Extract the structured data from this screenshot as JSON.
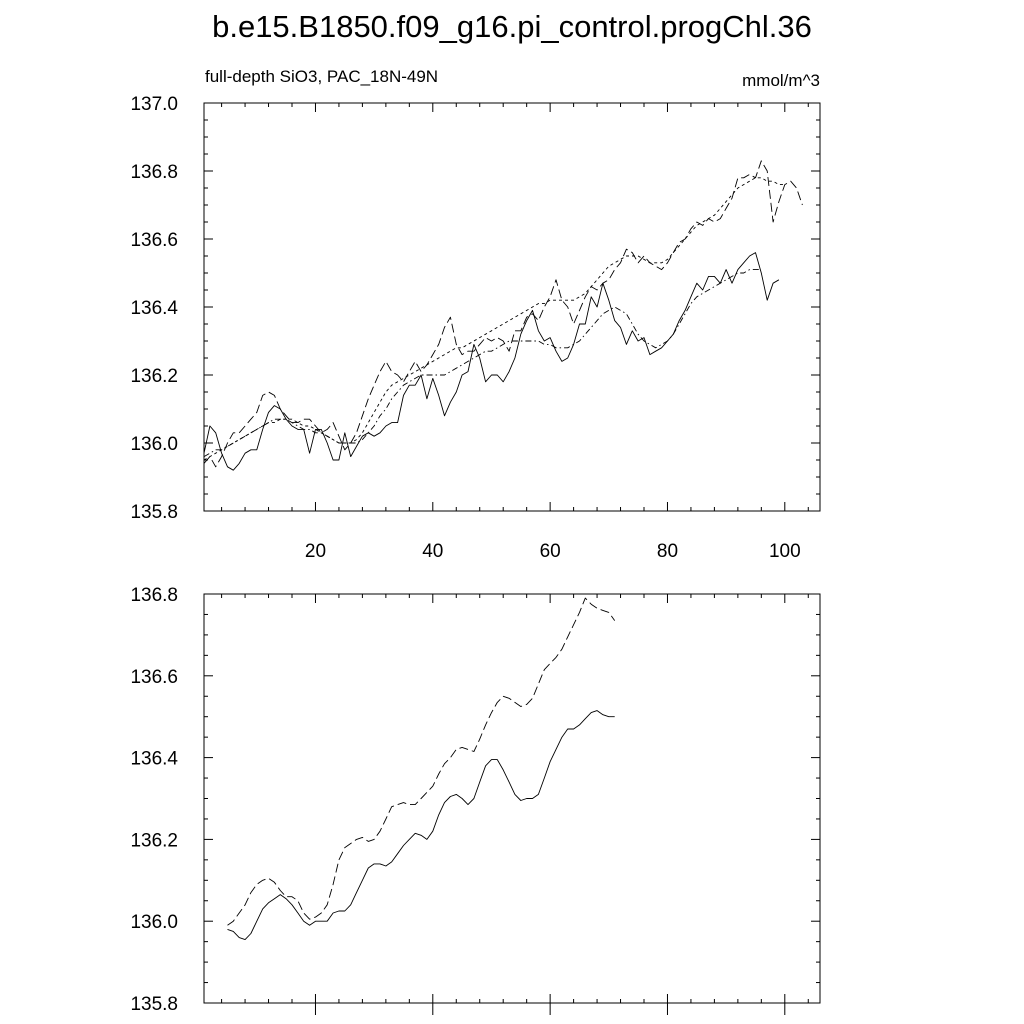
{
  "title": "b.e15.B1850.f09_g16.pi_control.progChl.36",
  "chart_data": [
    {
      "type": "line",
      "panel": "top",
      "subtitle_left": "full-depth SiO3, PAC_18N-49N",
      "subtitle_right": "mmol/m^3",
      "xlim": [
        1,
        106
      ],
      "ylim": [
        135.8,
        137.0
      ],
      "x_ticks": [
        20,
        40,
        60,
        80,
        100
      ],
      "x_tick_labels": [
        "20",
        "40",
        "60",
        "80",
        "100"
      ],
      "y_ticks": [
        135.8,
        136.0,
        136.2,
        136.4,
        136.6,
        136.8,
        137.0
      ],
      "y_tick_labels": [
        "135.8",
        "136.0",
        "136.2",
        "136.4",
        "136.6",
        "136.8",
        "137.0"
      ],
      "series": [
        {
          "style": "solid",
          "x_start": 1,
          "values": [
            135.97,
            136.05,
            136.03,
            135.97,
            135.93,
            135.92,
            135.94,
            135.97,
            135.98,
            135.98,
            136.04,
            136.09,
            136.11,
            136.1,
            136.07,
            136.05,
            136.04,
            136.04,
            135.97,
            136.04,
            136.04,
            136.0,
            135.95,
            135.95,
            136.03,
            135.96,
            135.99,
            136.02,
            136.03,
            136.02,
            136.03,
            136.05,
            136.06,
            136.06,
            136.14,
            136.17,
            136.17,
            136.2,
            136.13,
            136.19,
            136.14,
            136.08,
            136.12,
            136.15,
            136.2,
            136.21,
            136.29,
            136.25,
            136.18,
            136.2,
            136.2,
            136.18,
            136.21,
            136.25,
            136.32,
            136.36,
            136.39,
            136.33,
            136.3,
            136.31,
            136.27,
            136.24,
            136.25,
            136.29,
            136.35,
            136.35,
            136.43,
            136.4,
            136.47,
            136.42,
            136.36,
            136.34,
            136.29,
            136.33,
            136.3,
            136.31,
            136.26,
            136.27,
            136.28,
            136.3,
            136.32,
            136.36,
            136.39,
            136.43,
            136.47,
            136.45,
            136.49,
            136.49,
            136.47,
            136.51,
            136.47,
            136.51,
            136.53,
            136.55,
            136.56,
            136.5,
            136.42,
            136.47,
            136.48
          ]
        },
        {
          "style": "dashed",
          "x_start": 1,
          "values": [
            135.94,
            135.96,
            135.93,
            135.96,
            136.0,
            136.03,
            136.03,
            136.05,
            136.07,
            136.09,
            136.14,
            136.15,
            136.14,
            136.1,
            136.08,
            136.06,
            136.06,
            136.07,
            136.07,
            136.05,
            136.03,
            136.04,
            136.06,
            136.02,
            135.98,
            136.0,
            136.03,
            136.08,
            136.13,
            136.17,
            136.21,
            136.24,
            136.21,
            136.2,
            136.18,
            136.21,
            136.24,
            136.21,
            136.23,
            136.26,
            136.29,
            136.34,
            136.37,
            136.29,
            136.26,
            136.27,
            136.27,
            136.29,
            136.31,
            136.3,
            136.31,
            136.3,
            136.27,
            136.33,
            136.33,
            136.37,
            136.38,
            136.36,
            136.4,
            136.43,
            136.48,
            136.42,
            136.4,
            136.35,
            136.39,
            136.43,
            136.46,
            136.45,
            136.47,
            136.48,
            136.51,
            136.53,
            136.57,
            136.56,
            136.53,
            136.55,
            136.53,
            136.52,
            136.51,
            136.53,
            136.56,
            136.59,
            136.6,
            136.63,
            136.65,
            136.64,
            136.66,
            136.65,
            136.66,
            136.69,
            136.72,
            136.78,
            136.78,
            136.79,
            136.78,
            136.83,
            136.8,
            136.65,
            136.71,
            136.76,
            136.77,
            136.75,
            136.7
          ]
        },
        {
          "style": "dashdot",
          "x_start": 1,
          "values": [
            135.96,
            135.97,
            135.98,
            135.98,
            135.99,
            136.0,
            136.01,
            136.02,
            136.03,
            136.04,
            136.05,
            136.06,
            136.07,
            136.07,
            136.07,
            136.06,
            136.05,
            136.04,
            136.04,
            136.03,
            136.03,
            136.02,
            136.01,
            136.0,
            136.0,
            136.0,
            136.0,
            136.01,
            136.03,
            136.05,
            136.08,
            136.1,
            136.13,
            136.15,
            136.17,
            136.18,
            136.19,
            136.2,
            136.2,
            136.2,
            136.2,
            136.2,
            136.21,
            136.22,
            136.23,
            136.24,
            136.25,
            136.26,
            136.27,
            136.27,
            136.28,
            136.29,
            136.3,
            136.3,
            136.3,
            136.3,
            136.3,
            136.3,
            136.29,
            136.29,
            136.28,
            136.28,
            136.28,
            136.29,
            136.3,
            136.32,
            136.34,
            136.36,
            136.38,
            136.39,
            136.4,
            136.39,
            136.38,
            136.35,
            136.32,
            136.3,
            136.29,
            136.28,
            136.29,
            136.3,
            136.32,
            136.35,
            136.38,
            136.41,
            136.43,
            136.44,
            136.45,
            136.46,
            136.47,
            136.48,
            136.49,
            136.5,
            136.5,
            136.51,
            136.51,
            136.51
          ]
        },
        {
          "style": "dashed-fine",
          "x_start": 1,
          "values": [
            135.95,
            135.96,
            135.97,
            135.98,
            135.99,
            136.0,
            136.01,
            136.02,
            136.03,
            136.04,
            136.05,
            136.06,
            136.06,
            136.07,
            136.07,
            136.07,
            136.06,
            136.05,
            136.05,
            136.04,
            136.03,
            136.02,
            136.01,
            136.0,
            136.0,
            136.0,
            136.01,
            136.03,
            136.06,
            136.09,
            136.12,
            136.15,
            136.17,
            136.18,
            136.19,
            136.2,
            136.21,
            136.22,
            136.23,
            136.24,
            136.25,
            136.26,
            136.27,
            136.28,
            136.28,
            136.29,
            136.3,
            136.31,
            136.32,
            136.33,
            136.34,
            136.35,
            136.36,
            136.37,
            136.38,
            136.39,
            136.4,
            136.41,
            136.41,
            136.42,
            136.42,
            136.42,
            136.42,
            136.42,
            136.43,
            136.44,
            136.46,
            136.48,
            136.5,
            136.52,
            136.53,
            136.54,
            136.55,
            136.55,
            136.55,
            136.54,
            136.53,
            136.53,
            136.53,
            136.54,
            136.56,
            136.58,
            136.6,
            136.62,
            136.64,
            136.65,
            136.66,
            136.67,
            136.69,
            136.71,
            136.73,
            136.75,
            136.76,
            136.77,
            136.78,
            136.78,
            136.77,
            136.77,
            136.76,
            136.76
          ]
        }
      ]
    },
    {
      "type": "line",
      "panel": "bottom",
      "xlim": [
        1,
        106
      ],
      "ylim": [
        135.8,
        136.8
      ],
      "y_ticks": [
        135.8,
        136.0,
        136.2,
        136.4,
        136.6,
        136.8
      ],
      "y_tick_labels": [
        "135.8",
        "136.0",
        "136.2",
        "136.4",
        "136.6",
        "136.8"
      ],
      "series": [
        {
          "style": "solid",
          "x_start": 5,
          "values": [
            135.98,
            135.975,
            135.96,
            135.955,
            135.97,
            136.0,
            136.03,
            136.045,
            136.055,
            136.065,
            136.055,
            136.04,
            136.02,
            136.0,
            135.99,
            136.0,
            136.0,
            136.0,
            136.02,
            136.025,
            136.025,
            136.04,
            136.07,
            136.1,
            136.13,
            136.14,
            136.14,
            136.135,
            136.145,
            136.165,
            136.185,
            136.2,
            136.215,
            136.21,
            136.2,
            136.22,
            136.26,
            136.29,
            136.305,
            136.31,
            136.3,
            136.285,
            136.3,
            136.34,
            136.38,
            136.395,
            136.395,
            136.37,
            136.34,
            136.31,
            136.295,
            136.3,
            136.3,
            136.31,
            136.35,
            136.39,
            136.42,
            136.45,
            136.47,
            136.47,
            136.48,
            136.495,
            136.51,
            136.515,
            136.505,
            136.5,
            136.5
          ]
        },
        {
          "style": "dashed",
          "x_start": 5,
          "values": [
            135.99,
            136.0,
            136.02,
            136.04,
            136.07,
            136.09,
            136.1,
            136.105,
            136.095,
            136.075,
            136.06,
            136.06,
            136.05,
            136.02,
            136.005,
            136.01,
            136.02,
            136.04,
            136.09,
            136.15,
            136.18,
            136.19,
            136.2,
            136.205,
            136.195,
            136.2,
            136.22,
            136.25,
            136.28,
            136.285,
            136.29,
            136.285,
            136.285,
            136.3,
            136.315,
            136.33,
            136.36,
            136.385,
            136.4,
            136.42,
            136.425,
            136.42,
            136.415,
            136.445,
            136.48,
            136.51,
            136.535,
            136.55,
            136.545,
            136.535,
            136.525,
            136.53,
            136.545,
            136.58,
            136.615,
            136.63,
            136.645,
            136.665,
            136.695,
            136.725,
            136.755,
            136.79,
            136.775,
            136.765,
            136.76,
            136.755,
            136.735
          ]
        }
      ]
    }
  ]
}
